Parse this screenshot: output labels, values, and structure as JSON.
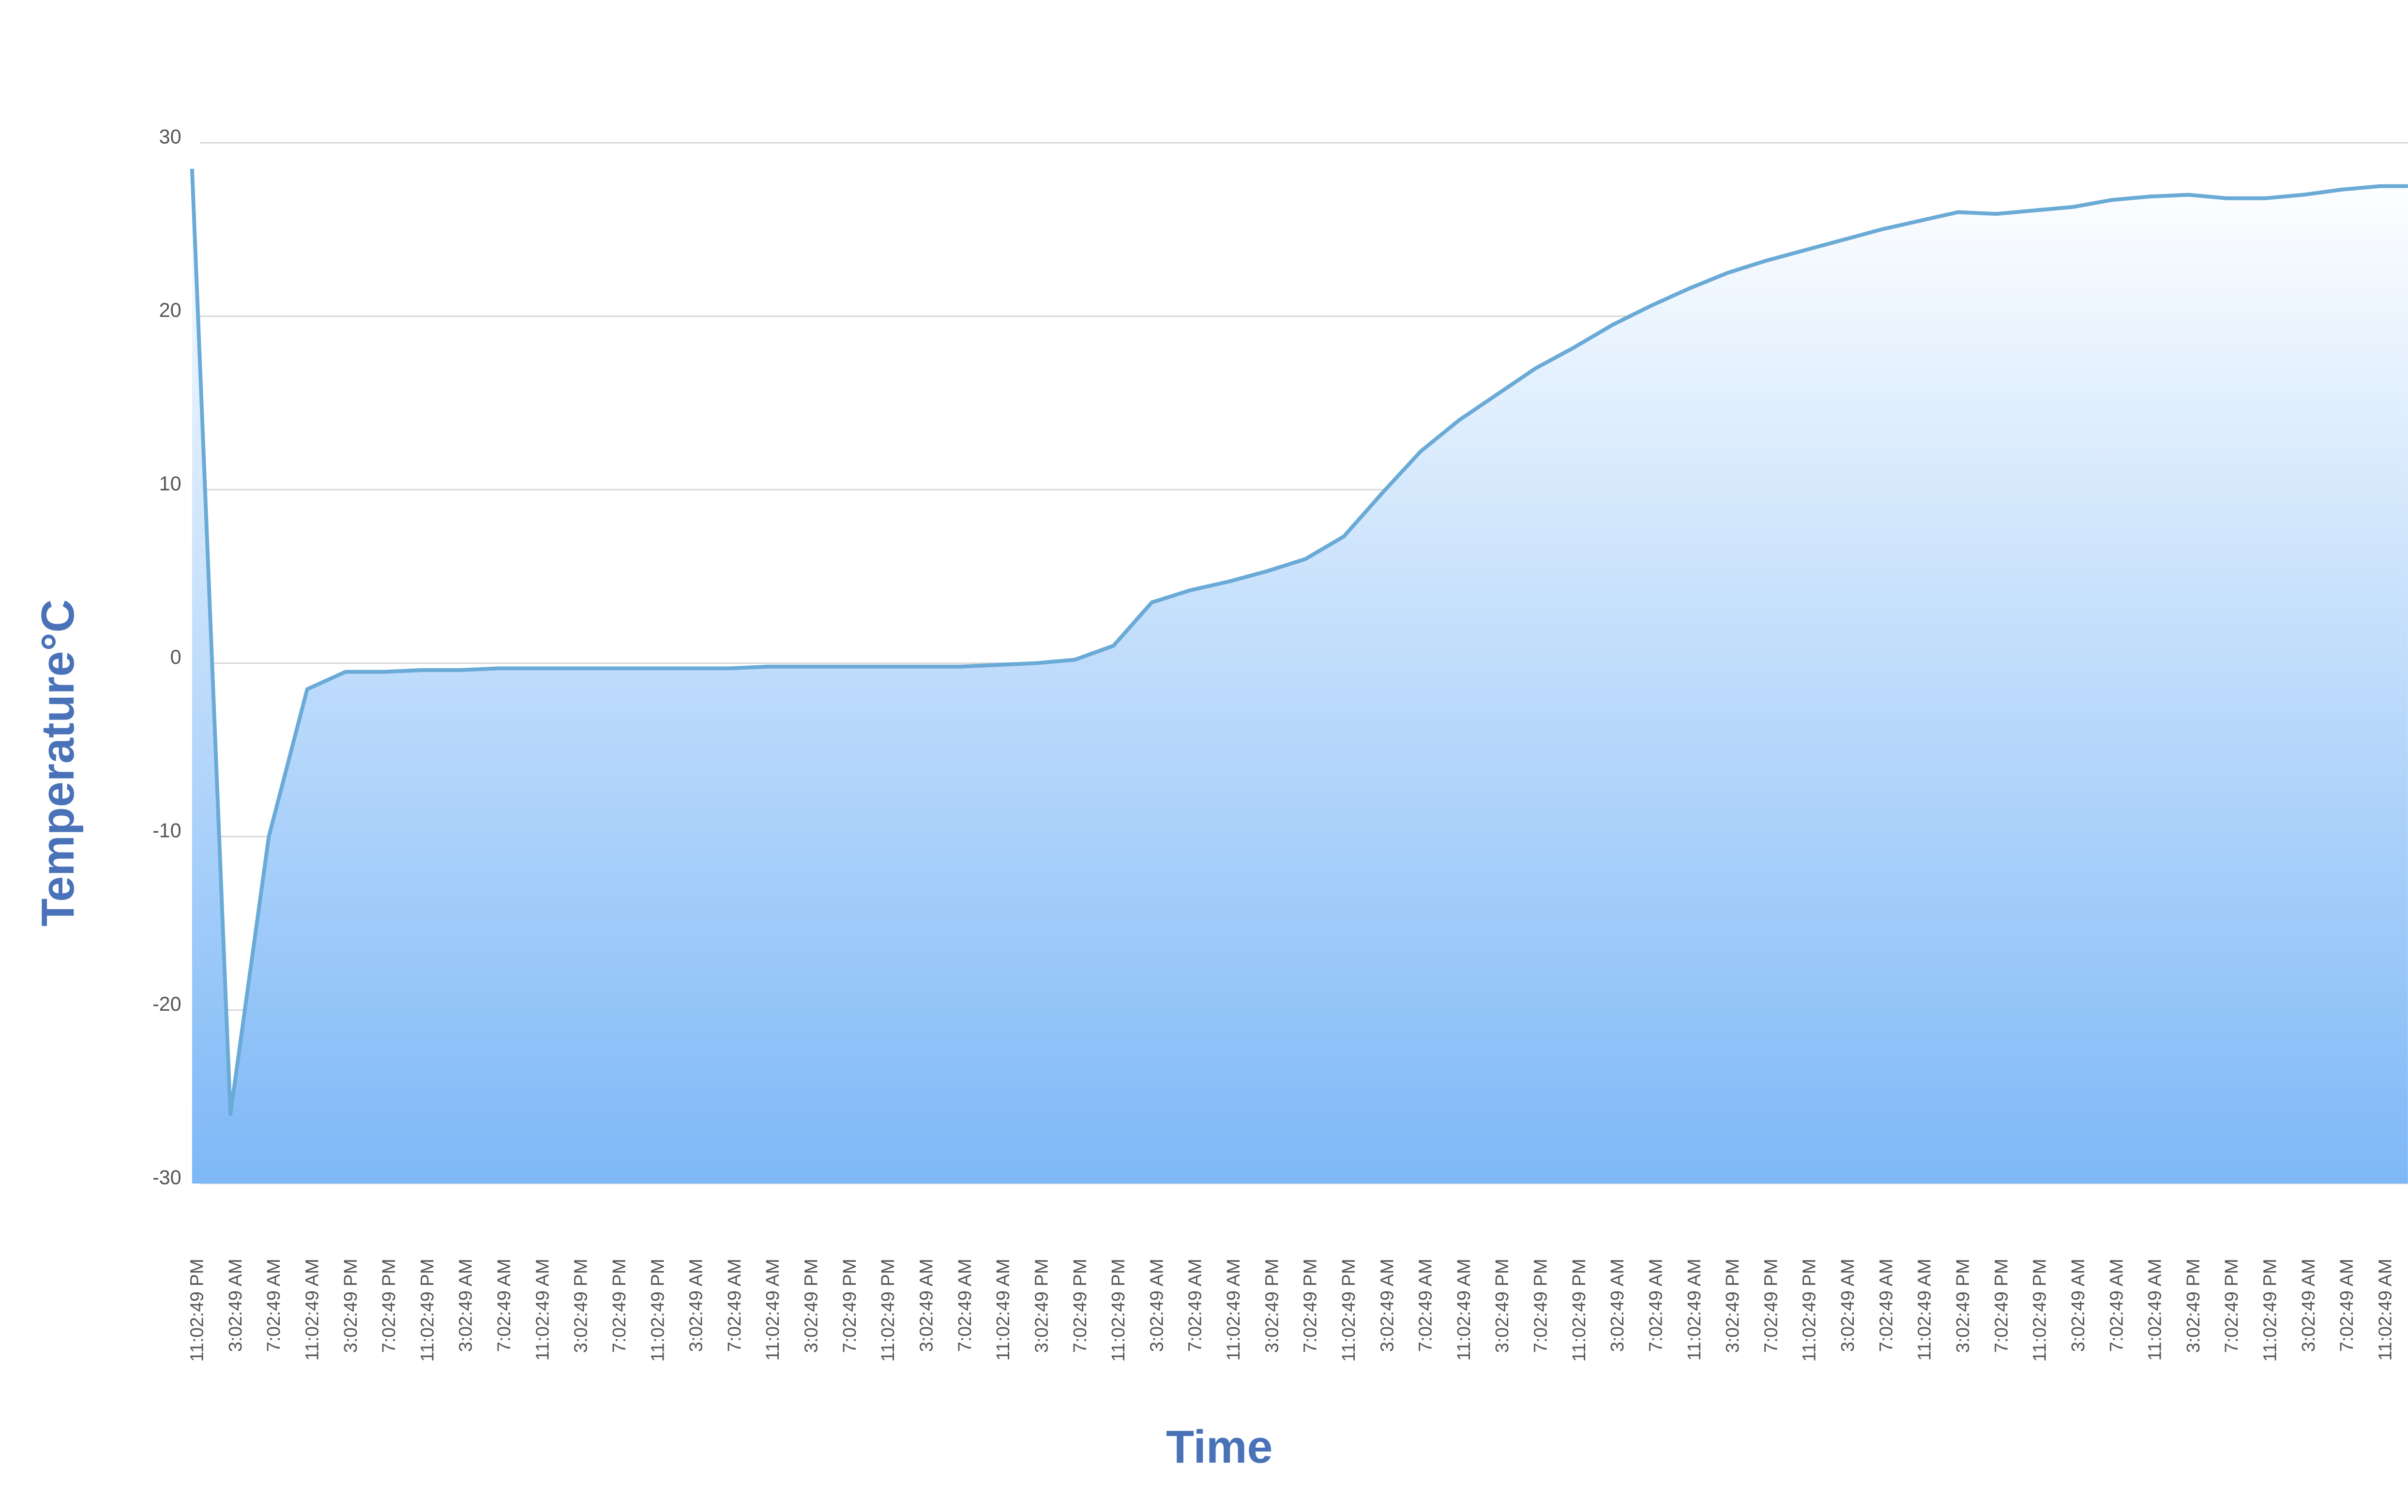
{
  "chart_data": {
    "type": "area",
    "x_label": "Time",
    "y_label": "Temperature°C",
    "categories": [
      "11:02:49 PM",
      "3:02:49 AM",
      "7:02:49 AM",
      "11:02:49 AM",
      "3:02:49 PM",
      "7:02:49 PM",
      "11:02:49 PM",
      "3:02:49 AM",
      "7:02:49 AM",
      "11:02:49 AM",
      "3:02:49 PM",
      "7:02:49 PM",
      "11:02:49 PM",
      "3:02:49 AM",
      "7:02:49 AM",
      "11:02:49 AM",
      "3:02:49 PM",
      "7:02:49 PM",
      "11:02:49 PM",
      "3:02:49 AM",
      "7:02:49 AM",
      "11:02:49 AM",
      "3:02:49 PM",
      "7:02:49 PM",
      "11:02:49 PM",
      "3:02:49 AM",
      "7:02:49 AM",
      "11:02:49 AM",
      "3:02:49 PM",
      "7:02:49 PM",
      "11:02:49 PM",
      "3:02:49 AM",
      "7:02:49 AM",
      "11:02:49 AM",
      "3:02:49 PM",
      "7:02:49 PM",
      "11:02:49 PM",
      "3:02:49 AM",
      "7:02:49 AM",
      "11:02:49 AM",
      "3:02:49 PM",
      "7:02:49 PM",
      "11:02:49 PM",
      "3:02:49 AM",
      "7:02:49 AM",
      "11:02:49 AM",
      "3:02:49 PM",
      "7:02:49 PM",
      "11:02:49 PM",
      "3:02:49 AM",
      "7:02:49 AM",
      "11:02:49 AM",
      "3:02:49 PM",
      "7:02:49 PM",
      "11:02:49 PM",
      "3:02:49 AM",
      "7:02:49 AM",
      "11:02:49 AM"
    ],
    "values": [
      28.5,
      -26,
      -10,
      -1.5,
      -0.5,
      -0.5,
      -0.4,
      -0.4,
      -0.3,
      -0.3,
      -0.3,
      -0.3,
      -0.3,
      -0.3,
      -0.3,
      -0.2,
      -0.2,
      -0.2,
      -0.2,
      -0.2,
      -0.2,
      -0.1,
      0,
      0.2,
      1,
      3.5,
      4.2,
      4.7,
      5.3,
      6,
      7.3,
      9.8,
      12.2,
      14,
      15.5,
      17,
      18.2,
      19.5,
      20.6,
      21.6,
      22.5,
      23.2,
      23.8,
      24.4,
      25,
      25.5,
      26,
      25.9,
      26.1,
      26.3,
      26.7,
      26.9,
      27,
      26.8,
      26.8,
      27,
      27.3,
      27.5
    ],
    "color": "#6aaad6",
    "fill_top": "#ffffff",
    "fill_bottom": "#7db8f7",
    "ylim": [
      -30,
      30
    ],
    "yticks": [
      -30,
      -20,
      -10,
      0,
      10,
      20,
      30
    ],
    "grid": true
  }
}
